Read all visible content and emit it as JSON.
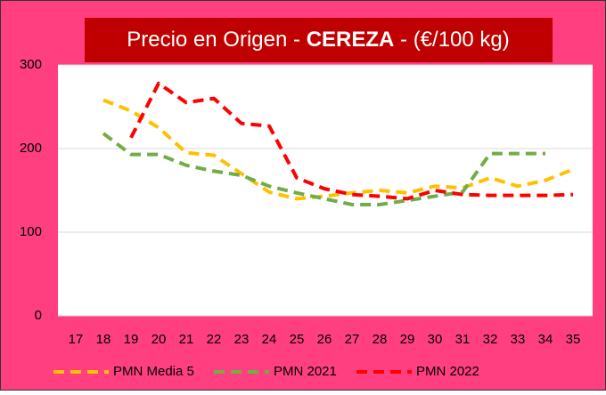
{
  "chart_data": {
    "type": "line",
    "title": "Precio en  Origen -",
    "title_highlight": "CEREZA",
    "title_suffix": "- (€/100 kg)",
    "categories": [
      "17",
      "18",
      "19",
      "20",
      "21",
      "22",
      "23",
      "24",
      "25",
      "26",
      "27",
      "28",
      "29",
      "30",
      "31",
      "32",
      "33",
      "34",
      "35"
    ],
    "series": [
      {
        "name": "PMN Media 5",
        "color": "#ffc000",
        "values": [
          null,
          258,
          245,
          225,
          195,
          192,
          170,
          148,
          140,
          143,
          147,
          150,
          147,
          155,
          153,
          165,
          155,
          162,
          175
        ]
      },
      {
        "name": "PMN 2021",
        "color": "#70ad47",
        "values": [
          null,
          218,
          193,
          193,
          180,
          173,
          168,
          155,
          147,
          140,
          133,
          133,
          138,
          143,
          148,
          194,
          194,
          194,
          null
        ]
      },
      {
        "name": "PMN 2022",
        "color": "#ff0000",
        "values": [
          null,
          null,
          213,
          278,
          255,
          260,
          230,
          227,
          165,
          152,
          145,
          143,
          140,
          150,
          145,
          144,
          144,
          144,
          145
        ]
      }
    ],
    "ylim": [
      0,
      300
    ],
    "yticks": [
      0,
      100,
      200,
      300
    ],
    "grid": true
  }
}
